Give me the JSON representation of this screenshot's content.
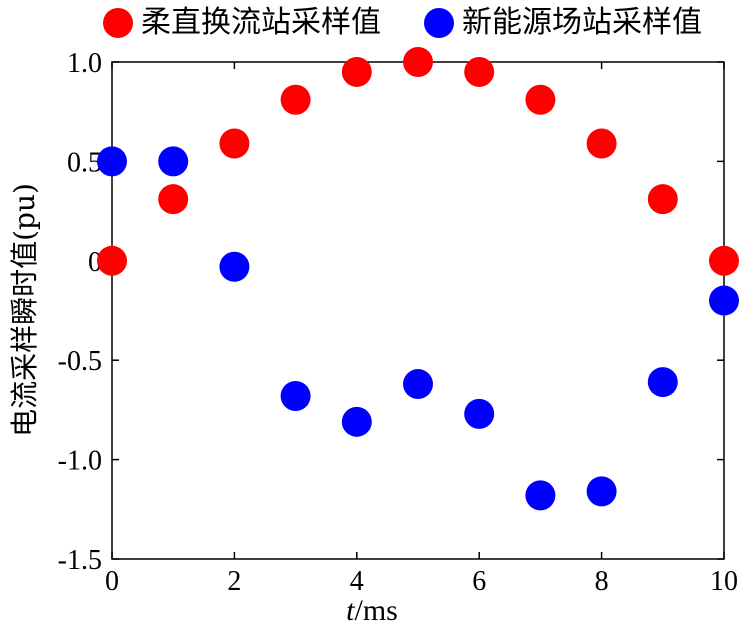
{
  "chart_data": {
    "type": "scatter",
    "xlabel_var": "t",
    "xlabel_unit": "/ms",
    "ylabel": "电流采样瞬时值(pu)",
    "xlim": [
      0,
      10
    ],
    "ylim": [
      -1.5,
      1.0
    ],
    "xticks": [
      "0",
      "2",
      "4",
      "6",
      "8",
      "10"
    ],
    "yticks": [
      "1.0",
      "0.5",
      "0",
      "-0.5",
      "-1.0",
      "-1.5"
    ],
    "grid": false,
    "legend_position": "top",
    "series": [
      {
        "name": "柔直换流站采样值",
        "color": "#ff0000",
        "x": [
          0,
          1,
          2,
          3,
          4,
          5,
          6,
          7,
          8,
          9,
          10
        ],
        "y": [
          0,
          0.31,
          0.59,
          0.81,
          0.95,
          1.0,
          0.95,
          0.81,
          0.59,
          0.31,
          0
        ]
      },
      {
        "name": "新能源场站采样值",
        "color": "#0000ff",
        "x": [
          0,
          1,
          2,
          3,
          4,
          5,
          6,
          7,
          8,
          9,
          10
        ],
        "y": [
          0.5,
          0.5,
          -0.03,
          -0.68,
          -0.81,
          -0.62,
          -0.77,
          -1.18,
          -1.16,
          -0.61,
          -0.2
        ]
      }
    ]
  }
}
